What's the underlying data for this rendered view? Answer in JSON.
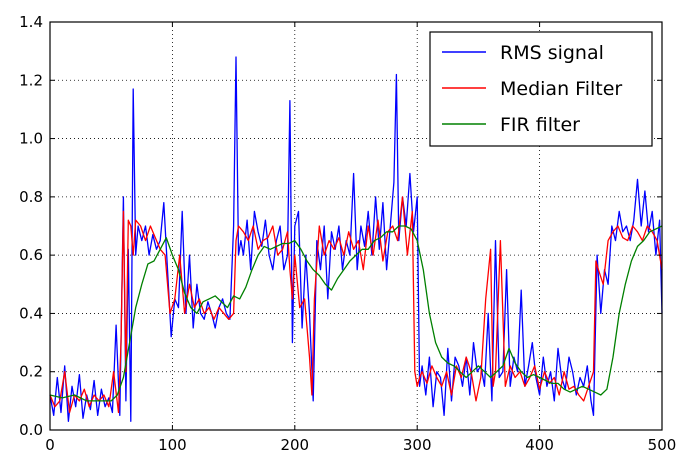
{
  "chart_data": {
    "type": "line",
    "title": "",
    "xlabel": "",
    "ylabel": "",
    "xlim": [
      0,
      500
    ],
    "ylim": [
      0,
      1.4
    ],
    "xticks": [
      0,
      100,
      200,
      300,
      400,
      500
    ],
    "xtick_labels": [
      "0",
      "100",
      "200",
      "300",
      "400",
      "500"
    ],
    "yticks": [
      0.0,
      0.2,
      0.4,
      0.6,
      0.8,
      1.0,
      1.2,
      1.4
    ],
    "ytick_labels": [
      "0.0",
      "0.2",
      "0.4",
      "0.6",
      "0.8",
      "1.0",
      "1.2",
      "1.4"
    ],
    "grid": true,
    "grid_style": "dotted",
    "legend_position": "top-right",
    "series": [
      {
        "name": "RMS signal",
        "color": "#0000ff",
        "x": [
          0,
          3,
          6,
          9,
          12,
          15,
          18,
          21,
          24,
          27,
          30,
          33,
          36,
          39,
          42,
          45,
          48,
          51,
          54,
          57,
          60,
          62,
          64,
          66,
          68,
          70,
          72,
          75,
          78,
          81,
          84,
          87,
          90,
          93,
          96,
          99,
          102,
          105,
          108,
          111,
          114,
          117,
          120,
          123,
          126,
          129,
          132,
          135,
          138,
          141,
          144,
          147,
          150,
          152,
          154,
          156,
          158,
          161,
          164,
          167,
          170,
          173,
          176,
          179,
          182,
          185,
          188,
          191,
          194,
          196,
          198,
          200,
          203,
          206,
          209,
          212,
          215,
          218,
          221,
          224,
          227,
          230,
          233,
          236,
          239,
          242,
          245,
          248,
          251,
          254,
          257,
          260,
          263,
          266,
          269,
          272,
          275,
          278,
          281,
          283,
          285,
          288,
          291,
          294,
          297,
          300,
          302,
          304,
          307,
          310,
          313,
          316,
          319,
          322,
          325,
          328,
          331,
          334,
          337,
          340,
          343,
          346,
          349,
          352,
          355,
          358,
          361,
          364,
          367,
          370,
          373,
          376,
          379,
          382,
          385,
          388,
          391,
          394,
          397,
          400,
          403,
          406,
          409,
          412,
          415,
          418,
          421,
          424,
          427,
          430,
          433,
          436,
          439,
          442,
          444,
          447,
          450,
          453,
          456,
          459,
          462,
          465,
          468,
          471,
          474,
          477,
          480,
          483,
          486,
          489,
          492,
          495,
          498,
          500
        ],
        "y": [
          0.12,
          0.05,
          0.18,
          0.06,
          0.22,
          0.03,
          0.15,
          0.08,
          0.19,
          0.04,
          0.12,
          0.07,
          0.17,
          0.05,
          0.14,
          0.08,
          0.11,
          0.06,
          0.36,
          0.05,
          0.8,
          0.1,
          0.62,
          0.03,
          1.17,
          0.6,
          0.7,
          0.65,
          0.7,
          0.6,
          0.67,
          0.62,
          0.65,
          0.78,
          0.55,
          0.32,
          0.45,
          0.42,
          0.75,
          0.4,
          0.6,
          0.35,
          0.5,
          0.4,
          0.38,
          0.44,
          0.4,
          0.35,
          0.42,
          0.45,
          0.4,
          0.38,
          0.7,
          1.28,
          0.6,
          0.65,
          0.6,
          0.72,
          0.55,
          0.75,
          0.68,
          0.63,
          0.72,
          0.6,
          0.55,
          0.65,
          0.7,
          0.55,
          0.6,
          1.13,
          0.3,
          0.7,
          0.75,
          0.35,
          0.6,
          0.4,
          0.1,
          0.65,
          0.55,
          0.7,
          0.45,
          0.68,
          0.62,
          0.7,
          0.55,
          0.65,
          0.6,
          0.88,
          0.55,
          0.7,
          0.63,
          0.75,
          0.6,
          0.8,
          0.62,
          0.78,
          0.55,
          0.7,
          0.85,
          1.22,
          0.65,
          0.8,
          0.7,
          0.88,
          0.68,
          0.8,
          0.15,
          0.22,
          0.12,
          0.25,
          0.08,
          0.2,
          0.18,
          0.05,
          0.28,
          0.1,
          0.25,
          0.22,
          0.15,
          0.25,
          0.12,
          0.3,
          0.2,
          0.22,
          0.15,
          0.4,
          0.1,
          0.65,
          0.18,
          0.2,
          0.55,
          0.15,
          0.25,
          0.2,
          0.48,
          0.15,
          0.22,
          0.3,
          0.18,
          0.12,
          0.25,
          0.15,
          0.2,
          0.1,
          0.28,
          0.18,
          0.14,
          0.25,
          0.2,
          0.12,
          0.18,
          0.15,
          0.22,
          0.1,
          0.05,
          0.6,
          0.4,
          0.55,
          0.5,
          0.7,
          0.65,
          0.75,
          0.68,
          0.7,
          0.65,
          0.72,
          0.86,
          0.7,
          0.82,
          0.68,
          0.75,
          0.6,
          0.72,
          0.4
        ]
      },
      {
        "name": "Median Filter",
        "color": "#ff0000",
        "x": [
          0,
          4,
          8,
          12,
          16,
          20,
          24,
          28,
          32,
          36,
          40,
          44,
          48,
          52,
          56,
          58,
          60,
          62,
          64,
          66,
          68,
          70,
          74,
          78,
          82,
          86,
          90,
          94,
          98,
          102,
          106,
          110,
          114,
          118,
          122,
          126,
          130,
          134,
          138,
          142,
          146,
          150,
          152,
          154,
          158,
          162,
          166,
          170,
          174,
          178,
          182,
          186,
          190,
          194,
          196,
          198,
          200,
          204,
          208,
          212,
          214,
          216,
          220,
          224,
          228,
          232,
          236,
          240,
          244,
          248,
          252,
          256,
          260,
          264,
          268,
          272,
          276,
          280,
          284,
          288,
          292,
          296,
          298,
          300,
          302,
          304,
          308,
          312,
          316,
          320,
          324,
          328,
          332,
          336,
          340,
          344,
          348,
          352,
          356,
          360,
          362,
          364,
          368,
          372,
          376,
          380,
          384,
          388,
          392,
          396,
          400,
          404,
          408,
          412,
          416,
          420,
          424,
          428,
          432,
          436,
          440,
          444,
          446,
          448,
          452,
          456,
          460,
          464,
          468,
          472,
          476,
          480,
          484,
          488,
          492,
          496,
          500
        ],
        "y": [
          0.12,
          0.08,
          0.1,
          0.2,
          0.06,
          0.12,
          0.1,
          0.14,
          0.08,
          0.12,
          0.1,
          0.12,
          0.08,
          0.2,
          0.06,
          0.3,
          0.75,
          0.2,
          0.72,
          0.7,
          0.6,
          0.72,
          0.7,
          0.65,
          0.7,
          0.66,
          0.62,
          0.6,
          0.4,
          0.45,
          0.6,
          0.4,
          0.5,
          0.42,
          0.45,
          0.4,
          0.42,
          0.38,
          0.42,
          0.4,
          0.38,
          0.4,
          0.65,
          0.7,
          0.68,
          0.65,
          0.7,
          0.62,
          0.65,
          0.66,
          0.7,
          0.6,
          0.62,
          0.68,
          0.55,
          0.45,
          0.6,
          0.42,
          0.45,
          0.25,
          0.12,
          0.45,
          0.7,
          0.6,
          0.65,
          0.62,
          0.66,
          0.6,
          0.68,
          0.62,
          0.65,
          0.55,
          0.7,
          0.6,
          0.72,
          0.58,
          0.68,
          0.7,
          0.65,
          0.8,
          0.6,
          0.75,
          0.2,
          0.15,
          0.18,
          0.2,
          0.16,
          0.22,
          0.18,
          0.15,
          0.2,
          0.12,
          0.22,
          0.18,
          0.25,
          0.2,
          0.1,
          0.18,
          0.45,
          0.62,
          0.15,
          0.2,
          0.65,
          0.15,
          0.22,
          0.18,
          0.2,
          0.15,
          0.18,
          0.22,
          0.14,
          0.2,
          0.16,
          0.18,
          0.12,
          0.2,
          0.14,
          0.15,
          0.12,
          0.1,
          0.15,
          0.2,
          0.58,
          0.55,
          0.5,
          0.65,
          0.68,
          0.7,
          0.66,
          0.65,
          0.7,
          0.68,
          0.65,
          0.7,
          0.68,
          0.65,
          0.55
        ]
      },
      {
        "name": "FIR filter",
        "color": "#008000",
        "x": [
          0,
          10,
          20,
          30,
          40,
          50,
          55,
          60,
          65,
          70,
          75,
          80,
          85,
          90,
          95,
          100,
          105,
          110,
          115,
          120,
          125,
          130,
          135,
          140,
          145,
          150,
          155,
          160,
          165,
          170,
          175,
          180,
          185,
          190,
          195,
          200,
          205,
          210,
          215,
          220,
          225,
          230,
          235,
          240,
          245,
          250,
          255,
          260,
          265,
          270,
          275,
          280,
          285,
          290,
          295,
          300,
          305,
          310,
          315,
          320,
          325,
          330,
          335,
          340,
          345,
          350,
          355,
          360,
          365,
          370,
          375,
          380,
          385,
          390,
          395,
          400,
          405,
          410,
          415,
          420,
          425,
          430,
          435,
          440,
          445,
          450,
          455,
          460,
          465,
          470,
          475,
          480,
          485,
          490,
          495,
          500
        ],
        "y": [
          0.12,
          0.11,
          0.12,
          0.1,
          0.1,
          0.1,
          0.12,
          0.18,
          0.3,
          0.42,
          0.5,
          0.57,
          0.58,
          0.62,
          0.66,
          0.6,
          0.55,
          0.47,
          0.42,
          0.4,
          0.44,
          0.45,
          0.46,
          0.44,
          0.42,
          0.46,
          0.45,
          0.49,
          0.55,
          0.6,
          0.63,
          0.62,
          0.63,
          0.64,
          0.64,
          0.65,
          0.62,
          0.58,
          0.55,
          0.53,
          0.5,
          0.48,
          0.52,
          0.55,
          0.58,
          0.6,
          0.62,
          0.62,
          0.65,
          0.66,
          0.68,
          0.68,
          0.7,
          0.7,
          0.69,
          0.65,
          0.55,
          0.4,
          0.3,
          0.25,
          0.23,
          0.22,
          0.2,
          0.18,
          0.2,
          0.22,
          0.2,
          0.18,
          0.2,
          0.22,
          0.28,
          0.23,
          0.2,
          0.18,
          0.19,
          0.18,
          0.17,
          0.16,
          0.16,
          0.14,
          0.13,
          0.14,
          0.15,
          0.14,
          0.13,
          0.12,
          0.14,
          0.25,
          0.4,
          0.5,
          0.58,
          0.63,
          0.65,
          0.68,
          0.69,
          0.7
        ]
      }
    ]
  }
}
